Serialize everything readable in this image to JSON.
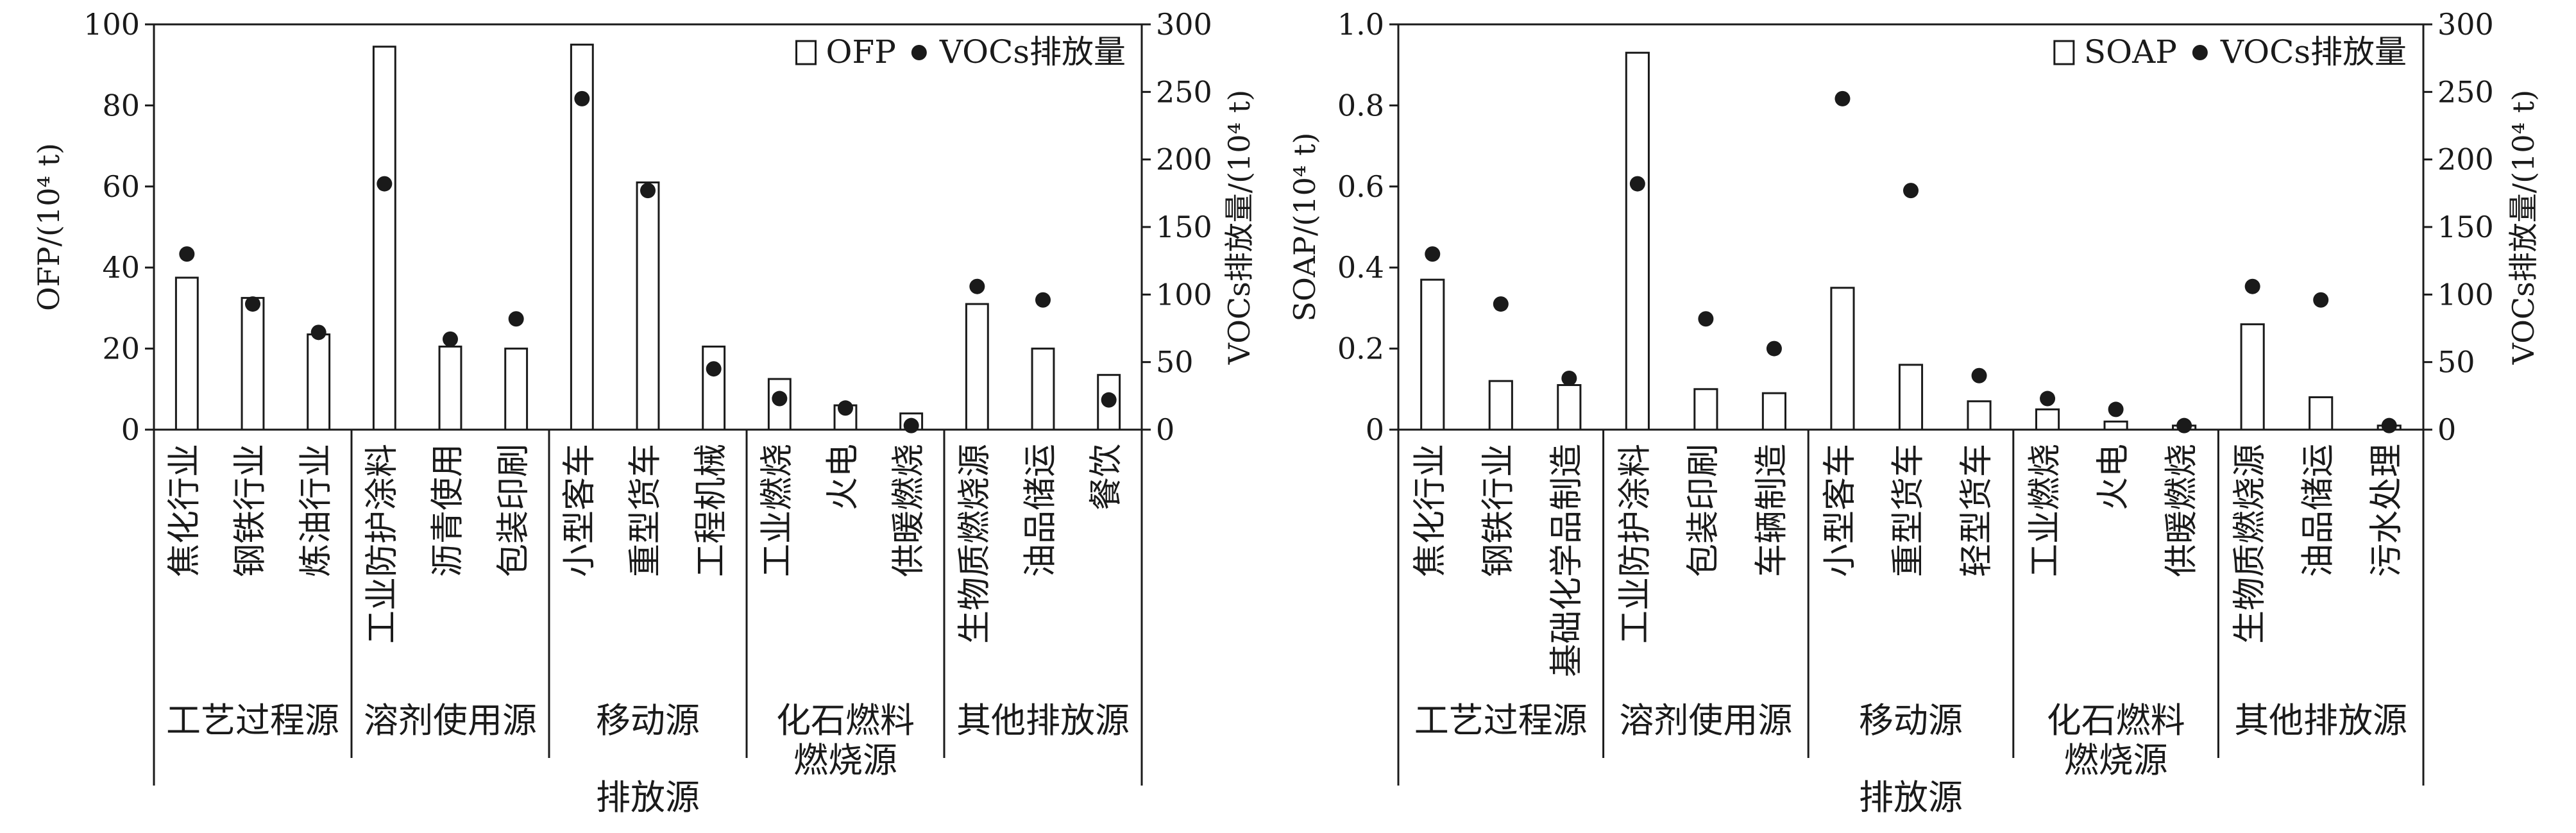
{
  "chart_data": [
    {
      "type": "bar",
      "bar_axis_label": "OFP/(10⁴ t)",
      "dot_axis_label": "VOCs排放量/(10⁴ t)",
      "xlabel": "排放源",
      "ylim": [
        0,
        100
      ],
      "y2lim": [
        0,
        300
      ],
      "y_ticks": [
        "0",
        "20",
        "40",
        "60",
        "80",
        "100"
      ],
      "y2_ticks": [
        "0",
        "50",
        "100",
        "150",
        "200",
        "250",
        "300"
      ],
      "legend": {
        "bar": "OFP",
        "dot": "VOCs排放量",
        "position": "top-right"
      },
      "groups": [
        {
          "name": "工艺过程源",
          "categories": [
            "焦化行业",
            "钢铁行业",
            "炼油行业"
          ]
        },
        {
          "name": "溶剂使用源",
          "categories": [
            "工业防护涂料",
            "沥青使用",
            "包装印刷"
          ]
        },
        {
          "name": "移动源",
          "categories": [
            "小型客车",
            "重型货车",
            "工程机械"
          ]
        },
        {
          "name": "化石燃料燃烧源",
          "categories": [
            "工业燃烧",
            "火电",
            "供暖燃烧"
          ]
        },
        {
          "name": "其他排放源",
          "categories": [
            "生物质燃烧源",
            "油品储运",
            "餐饮"
          ]
        }
      ],
      "series": [
        {
          "name": "OFP",
          "kind": "bar",
          "values": [
            37.5,
            32.5,
            23.5,
            94.5,
            20.5,
            20,
            95,
            61,
            20.5,
            12.5,
            6,
            4,
            31,
            20,
            13.5
          ]
        },
        {
          "name": "VOCs排放量",
          "kind": "dot",
          "values": [
            130,
            93,
            72,
            182,
            67,
            82,
            245,
            177,
            45,
            23,
            16,
            3,
            106,
            96,
            22
          ]
        }
      ]
    },
    {
      "type": "bar",
      "bar_axis_label": "SOAP/(10⁴ t)",
      "dot_axis_label": "VOCs排放量/(10⁴ t)",
      "xlabel": "排放源",
      "ylim": [
        0,
        1.0
      ],
      "y2lim": [
        0,
        300
      ],
      "y_ticks": [
        "0",
        "0.2",
        "0.4",
        "0.6",
        "0.8",
        "1.0"
      ],
      "y2_ticks": [
        "0",
        "50",
        "100",
        "150",
        "200",
        "250",
        "300"
      ],
      "legend": {
        "bar": "SOAP",
        "dot": "VOCs排放量",
        "position": "top-right"
      },
      "groups": [
        {
          "name": "工艺过程源",
          "categories": [
            "焦化行业",
            "钢铁行业",
            "基础化学品制造"
          ]
        },
        {
          "name": "溶剂使用源",
          "categories": [
            "工业防护涂料",
            "包装印刷",
            "车辆制造"
          ]
        },
        {
          "name": "移动源",
          "categories": [
            "小型客车",
            "重型货车",
            "轻型货车"
          ]
        },
        {
          "name": "化石燃料燃烧源",
          "categories": [
            "工业燃烧",
            "火电",
            "供暖燃烧"
          ]
        },
        {
          "name": "其他排放源",
          "categories": [
            "生物质燃烧源",
            "油品储运",
            "污水处理"
          ]
        }
      ],
      "series": [
        {
          "name": "SOAP",
          "kind": "bar",
          "values": [
            0.37,
            0.12,
            0.11,
            0.93,
            0.1,
            0.09,
            0.35,
            0.16,
            0.07,
            0.05,
            0.02,
            0.01,
            0.26,
            0.08,
            0.01
          ]
        },
        {
          "name": "VOCs排放量",
          "kind": "dot",
          "values": [
            130,
            93,
            38,
            182,
            82,
            60,
            245,
            177,
            40,
            23,
            15,
            3,
            106,
            96,
            3
          ]
        }
      ]
    }
  ]
}
